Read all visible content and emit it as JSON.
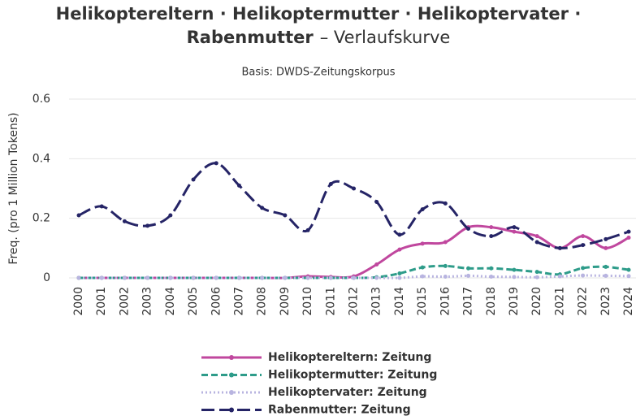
{
  "chart_data": {
    "type": "line",
    "title": {
      "line1": "Helikoptereltern · Helikoptermutter · Helikoptervater ·",
      "line2_bold": "Rabenmutter",
      "line2_rest": "– Verlaufskurve"
    },
    "subtitle": "Basis: DWDS-Zeitungskorpus",
    "y_label": "Freq. (pro 1 Million Tokens)",
    "categories": [
      "2000",
      "2001",
      "2002",
      "2003",
      "2004",
      "2005",
      "2006",
      "2007",
      "2008",
      "2009",
      "2010",
      "2011",
      "2012",
      "2013",
      "2014",
      "2015",
      "2016",
      "2017",
      "2018",
      "2019",
      "2020",
      "2021",
      "2022",
      "2023",
      "2024"
    ],
    "ylim": [
      0,
      0.6
    ],
    "yticks": [
      0,
      0.2,
      0.4,
      0.6
    ],
    "grid": true,
    "legend": "bottom",
    "series": [
      {
        "name": "Helikoptereltern: Zeitung",
        "color": "#c0479e",
        "dash": "solid",
        "values": [
          0,
          0,
          0,
          0,
          0,
          0,
          0,
          0,
          0,
          0,
          0.005,
          0.003,
          0.005,
          0.045,
          0.095,
          0.115,
          0.12,
          0.17,
          0.17,
          0.155,
          0.14,
          0.1,
          0.14,
          0.1,
          0.135
        ]
      },
      {
        "name": "Helikoptermutter: Zeitung",
        "color": "#2e9c8a",
        "dash": "dash",
        "values": [
          0,
          0,
          0,
          0,
          0,
          0,
          0,
          0,
          0,
          0,
          0,
          0,
          0,
          0.002,
          0.015,
          0.035,
          0.04,
          0.032,
          0.032,
          0.027,
          0.02,
          0.012,
          0.033,
          0.037,
          0.027
        ]
      },
      {
        "name": "Helikoptervater: Zeitung",
        "color": "#b8b4e0",
        "dash": "dot",
        "values": [
          0,
          0,
          0,
          0,
          0,
          0,
          0,
          0,
          0,
          0,
          0,
          0,
          0,
          0,
          0,
          0.005,
          0.004,
          0.007,
          0.004,
          0.003,
          0.002,
          0.005,
          0.008,
          0.007,
          0.006
        ]
      },
      {
        "name": "Rabenmutter: Zeitung",
        "color": "#252466",
        "dash": "longdash",
        "values": [
          0.21,
          0.24,
          0.19,
          0.175,
          0.21,
          0.33,
          0.385,
          0.31,
          0.235,
          0.21,
          0.16,
          0.315,
          0.3,
          0.255,
          0.145,
          0.23,
          0.25,
          0.165,
          0.14,
          0.17,
          0.12,
          0.1,
          0.11,
          0.13,
          0.155
        ]
      }
    ]
  }
}
